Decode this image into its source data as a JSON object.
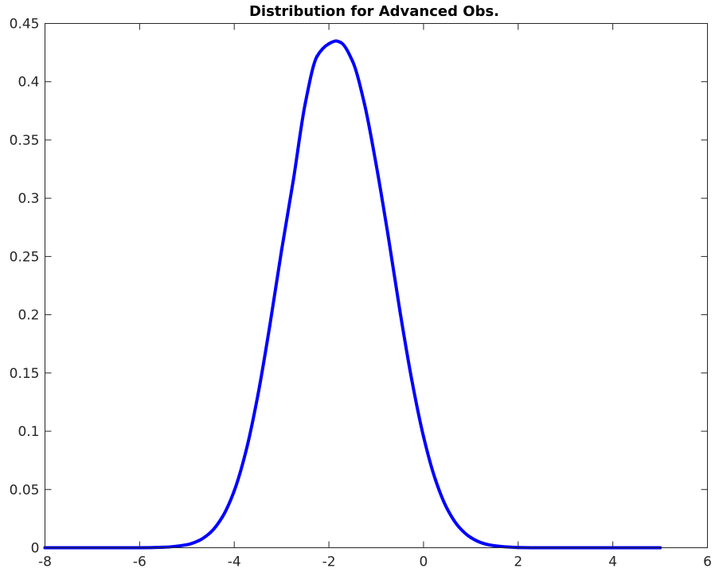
{
  "chart_data": {
    "type": "line",
    "title": "Distribution for Advanced Obs.",
    "xlabel": "",
    "ylabel": "",
    "xlim": [
      -8,
      6
    ],
    "ylim": [
      0,
      0.45
    ],
    "xticks": [
      -8,
      -6,
      -4,
      -2,
      0,
      2,
      4,
      6
    ],
    "yticks": [
      0,
      0.05,
      0.1,
      0.15,
      0.2,
      0.25,
      0.3,
      0.35,
      0.4,
      0.45
    ],
    "xtick_labels": [
      "-8",
      "-6",
      "-4",
      "-2",
      "0",
      "2",
      "4",
      "6"
    ],
    "ytick_labels": [
      "0",
      "0.05",
      "0.1",
      "0.15",
      "0.2",
      "0.25",
      "0.3",
      "0.35",
      "0.4",
      "0.45"
    ],
    "grid": false,
    "series": [
      {
        "color": "#0000ff",
        "x": [
          -8,
          -7,
          -6,
          -5.5,
          -5,
          -4.75,
          -4.5,
          -4.25,
          -4,
          -3.75,
          -3.5,
          -3.25,
          -3,
          -2.75,
          -2.5,
          -2.25,
          -2,
          -1.85,
          -1.75,
          -1.5,
          -1.25,
          -1,
          -0.75,
          -0.5,
          -0.25,
          0,
          0.25,
          0.5,
          0.75,
          1,
          1.25,
          1.5,
          2,
          2.5,
          3,
          4,
          5
        ],
        "y": [
          0,
          0,
          0,
          0.0004,
          0.0026,
          0.0061,
          0.0132,
          0.0265,
          0.0489,
          0.0833,
          0.1311,
          0.1904,
          0.2553,
          0.3159,
          0.3813,
          0.4218,
          0.4326,
          0.435,
          0.4337,
          0.4176,
          0.3813,
          0.3286,
          0.2683,
          0.2035,
          0.1444,
          0.0954,
          0.0586,
          0.0334,
          0.0177,
          0.0087,
          0.0039,
          0.0017,
          0.0002,
          0,
          0,
          0,
          0
        ],
        "line_width": 4
      }
    ]
  }
}
